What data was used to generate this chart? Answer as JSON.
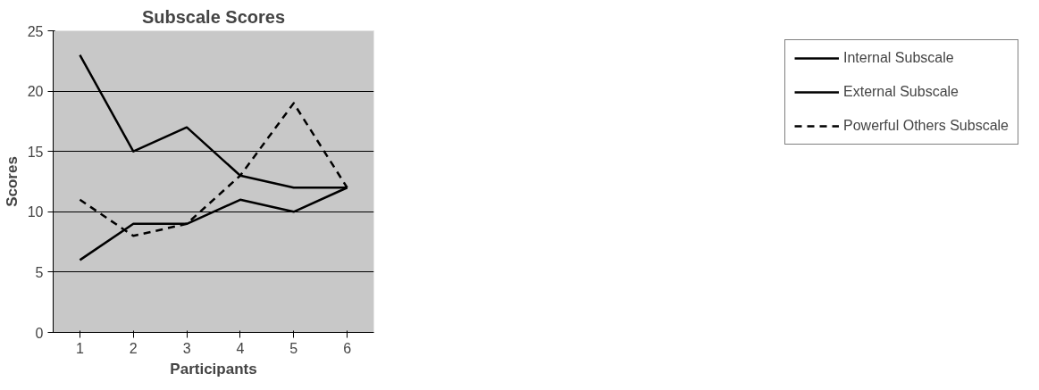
{
  "chart_data": {
    "type": "line",
    "title": "Subscale Scores",
    "xlabel": "Participants",
    "ylabel": "Scores",
    "categories": [
      "1",
      "2",
      "3",
      "4",
      "5",
      "6"
    ],
    "series": [
      {
        "name": "Internal Subscale",
        "color": "#000000",
        "line_style": "solid",
        "values": [
          6,
          9,
          9,
          11,
          10,
          12
        ]
      },
      {
        "name": "External Subscale",
        "color": "#000000",
        "line_style": "solid",
        "values": [
          23,
          15,
          17,
          13,
          12,
          12
        ]
      },
      {
        "name": "Powerful Others Subscale",
        "color": "#000000",
        "line_style": "dashed",
        "values": [
          11,
          8,
          9,
          13,
          19,
          12
        ]
      }
    ],
    "ylim": [
      0,
      25
    ],
    "yticks": [
      0,
      5,
      10,
      15,
      20,
      25
    ],
    "grid": "y",
    "legend": "right",
    "marker": "none"
  }
}
